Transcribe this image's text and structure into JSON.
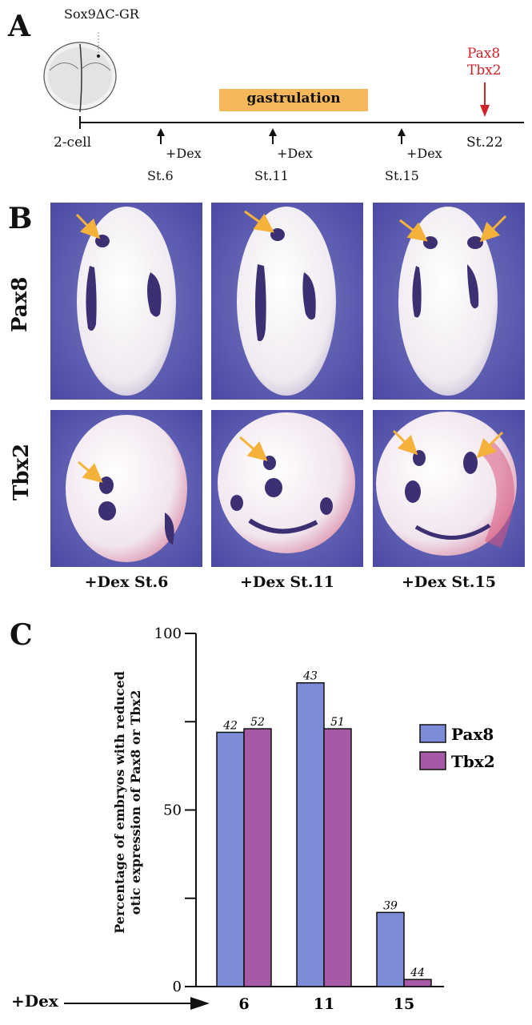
{
  "panel_a": {
    "letter": "A",
    "construct": "Sox9ΔC-GR",
    "markers": [
      "Pax8",
      "Tbx2"
    ],
    "marker_color": "#d0222a",
    "gastrulation_label": "gastrulation",
    "gastrulation_color": "#f5b75a",
    "timeline": {
      "start_label": "2-cell",
      "end_label": "St.22",
      "dex_label": "+Dex",
      "treatments": [
        "St.6",
        "St.11",
        "St.15"
      ]
    }
  },
  "panel_b": {
    "letter": "B",
    "row_labels": [
      "Pax8",
      "Tbx2"
    ],
    "column_labels": [
      "+Dex St.6",
      "+Dex St.11",
      "+Dex St.15"
    ],
    "arrow_color": "#f5b23a",
    "background_color": "#5c5cae"
  },
  "panel_c": {
    "letter": "C",
    "x_prefix": "+Dex"
  },
  "chart_data": {
    "type": "bar",
    "categories": [
      "6",
      "11",
      "15"
    ],
    "series": [
      {
        "name": "Pax8",
        "values": [
          72,
          86,
          21
        ],
        "n": [
          "42",
          "43",
          "39"
        ],
        "color": "#7e8bd6"
      },
      {
        "name": "Tbx2",
        "values": [
          73,
          73,
          2
        ],
        "n": [
          "52",
          "51",
          "44"
        ],
        "color": "#a65aa6"
      }
    ],
    "ylabel_lines": [
      "Percentage of embryos with reduced",
      "otic expression of Pax8 or Tbx2"
    ],
    "xlabel": "",
    "ylim": [
      0,
      100
    ],
    "yticks": [
      0,
      50,
      100
    ],
    "legend_position": "right"
  }
}
